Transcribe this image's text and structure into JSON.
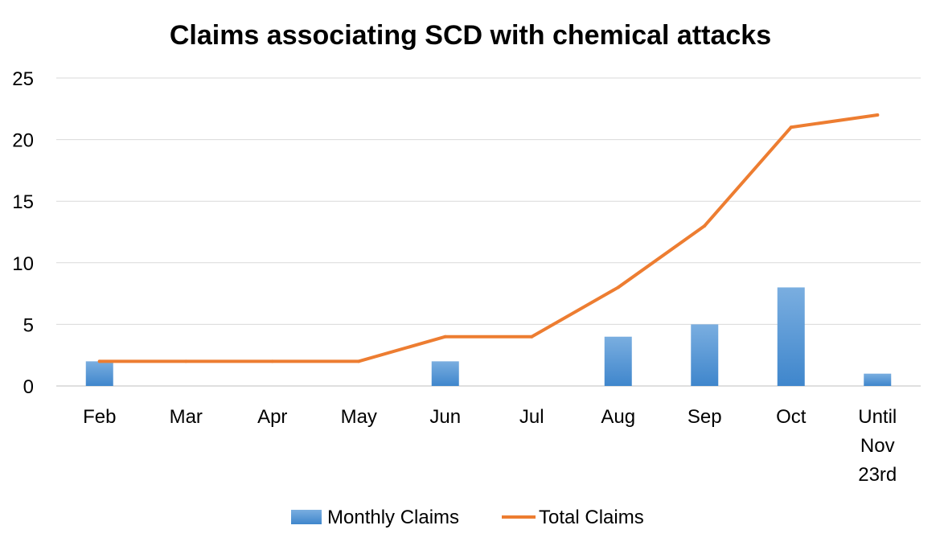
{
  "chart_data": {
    "type": "bar+line",
    "title": "Claims associating SCD with chemical attacks",
    "categories": [
      [
        "Feb"
      ],
      [
        "Mar"
      ],
      [
        "Apr"
      ],
      [
        "May"
      ],
      [
        "Jun"
      ],
      [
        "Jul"
      ],
      [
        "Aug"
      ],
      [
        "Sep"
      ],
      [
        "Oct"
      ],
      [
        "Until",
        "Nov",
        "23rd"
      ]
    ],
    "yticks": [
      0,
      5,
      10,
      15,
      20,
      25
    ],
    "ylim": [
      0,
      25
    ],
    "grid": true,
    "legend_position": "bottom",
    "series": [
      {
        "name": "Monthly Claims",
        "type": "bar",
        "color": "#5b9bd5",
        "values": [
          2,
          0,
          0,
          0,
          2,
          0,
          4,
          5,
          8,
          1
        ]
      },
      {
        "name": "Total Claims",
        "type": "line",
        "color": "#ed7d31",
        "values": [
          2,
          2,
          2,
          2,
          4,
          4,
          8,
          13,
          21,
          22
        ]
      }
    ]
  }
}
